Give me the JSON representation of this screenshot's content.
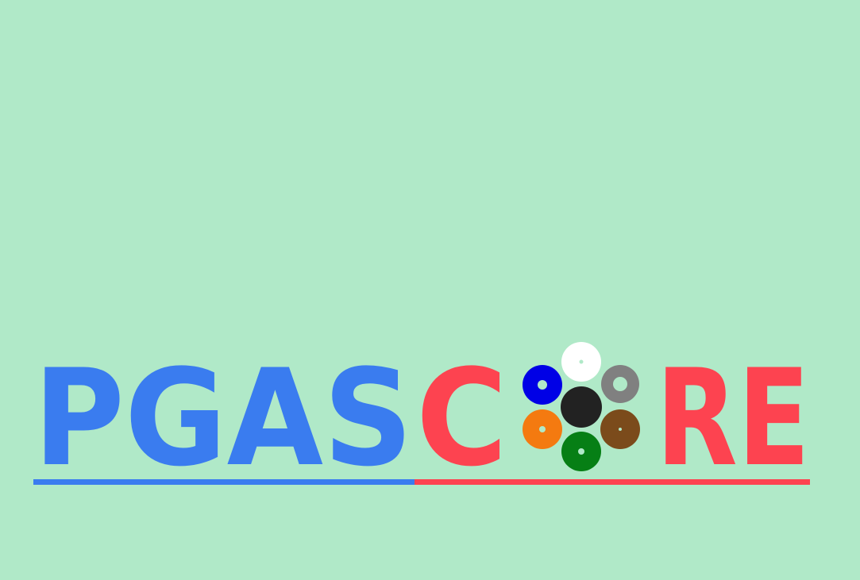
{
  "logo": {
    "text_left": "PGAS",
    "text_c": "C",
    "text_right": "RE",
    "full_text": "PGASCORE"
  },
  "colors": {
    "background": "#b0e9c8",
    "blue": "#3a7cef",
    "red": "#fd4350"
  },
  "icon": {
    "name": "colored-cable-cores-icon",
    "core_colors": [
      "#ffffff",
      "#0000e6",
      "#808080",
      "#222222",
      "#f47a10",
      "#7b4b1b",
      "#067f15"
    ]
  }
}
